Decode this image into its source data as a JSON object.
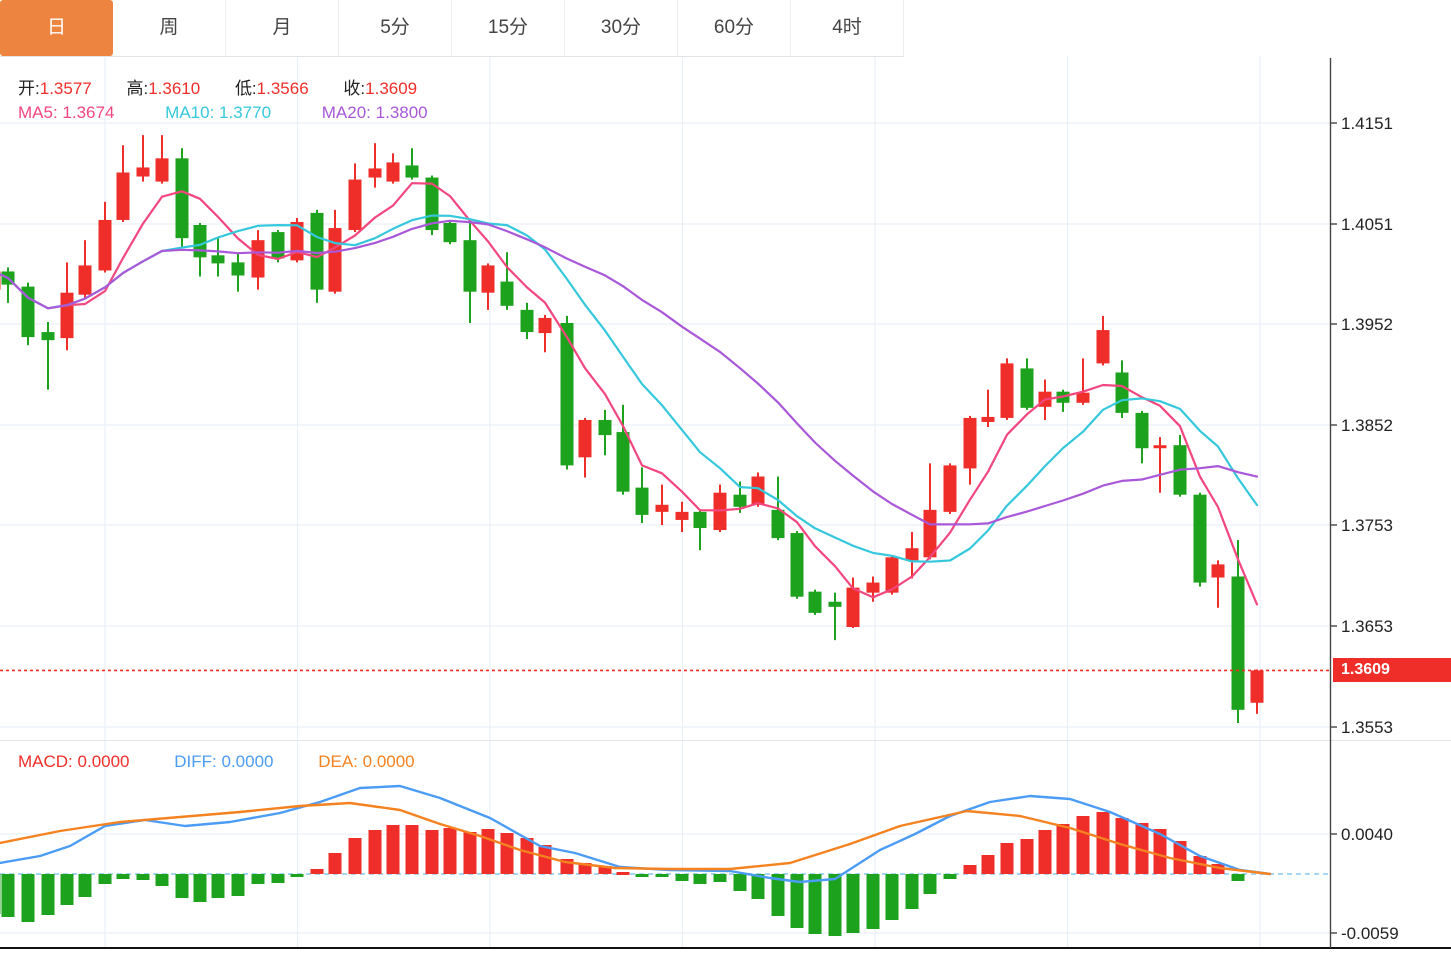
{
  "tabs": {
    "items": [
      {
        "label": "日",
        "active": true
      },
      {
        "label": "周",
        "active": false
      },
      {
        "label": "月",
        "active": false
      },
      {
        "label": "5分",
        "active": false
      },
      {
        "label": "15分",
        "active": false
      },
      {
        "label": "30分",
        "active": false
      },
      {
        "label": "60分",
        "active": false
      },
      {
        "label": "4时",
        "active": false
      }
    ]
  },
  "legend": {
    "ohlc": [
      {
        "label": "开:",
        "value": "1.3577"
      },
      {
        "label": "高:",
        "value": "1.3610"
      },
      {
        "label": "低:",
        "value": "1.3566"
      },
      {
        "label": "收:",
        "value": "1.3609"
      }
    ],
    "ma": [
      {
        "label": "MA5:",
        "value": "1.3674"
      },
      {
        "label": "MA10:",
        "value": "1.3770"
      },
      {
        "label": "MA20:",
        "value": "1.3800"
      }
    ]
  },
  "macd_legend": [
    {
      "label": "MACD:",
      "value": "0.0000"
    },
    {
      "label": "DIFF:",
      "value": "0.0000"
    },
    {
      "label": "DEA:",
      "value": "0.0000"
    }
  ],
  "colors": {
    "up": "#ef2e2a",
    "down": "#1ca21c",
    "accent": "#ed8540",
    "ma5": "#f2477e",
    "ma10": "#35c8dc",
    "ma20": "#a858d8",
    "diff": "#4b9cf5",
    "dea": "#f58220",
    "grid": "#e6eef6",
    "zero_line": "#a6d6f2",
    "price_line": "#f12c20"
  },
  "chart_data": {
    "type": "candlestick+macd",
    "main": {
      "y_axis_labels": [
        1.4151,
        1.4051,
        1.3952,
        1.3852,
        1.3753,
        1.3653,
        1.3553
      ],
      "current_price": 1.3609,
      "current_price_label": "1.3609",
      "ma_periods": [
        5,
        10,
        20
      ],
      "candles": [
        [
          -6,
          1.3986,
          1.4008,
          1.3981,
          1.4004
        ],
        [
          8,
          1.4004,
          1.4008,
          1.3973,
          1.3991
        ],
        [
          28,
          1.3989,
          1.3993,
          1.3931,
          1.3939
        ],
        [
          48,
          1.3944,
          1.3954,
          1.3887,
          1.3936
        ],
        [
          67,
          1.3938,
          1.4013,
          1.3926,
          1.3983
        ],
        [
          85,
          1.3981,
          1.4035,
          1.3977,
          1.401
        ],
        [
          105,
          1.4005,
          1.4073,
          1.4003,
          1.4055
        ],
        [
          123,
          1.4055,
          1.4129,
          1.4053,
          1.4102
        ],
        [
          143,
          1.4098,
          1.4139,
          1.4093,
          1.4107
        ],
        [
          162,
          1.4093,
          1.4139,
          1.4091,
          1.4116
        ],
        [
          182,
          1.4116,
          1.4126,
          1.4028,
          1.4037
        ],
        [
          200,
          1.405,
          1.4052,
          1.3999,
          1.4018
        ],
        [
          218,
          1.402,
          1.4038,
          1.3999,
          1.4012
        ],
        [
          238,
          1.4013,
          1.4023,
          1.3984,
          1.4
        ],
        [
          258,
          1.3998,
          1.4045,
          1.3986,
          1.4035
        ],
        [
          278,
          1.4043,
          1.4045,
          1.4013,
          1.4017
        ],
        [
          297,
          1.4015,
          1.4057,
          1.4013,
          1.4053
        ],
        [
          317,
          1.4062,
          1.4065,
          1.3973,
          1.3986
        ],
        [
          335,
          1.3984,
          1.4065,
          1.3982,
          1.4047
        ],
        [
          355,
          1.4045,
          1.4111,
          1.4043,
          1.4095
        ],
        [
          375,
          1.4097,
          1.4131,
          1.4087,
          1.4106
        ],
        [
          393,
          1.4093,
          1.4121,
          1.4091,
          1.4112
        ],
        [
          412,
          1.4109,
          1.4126,
          1.4095,
          1.4097
        ],
        [
          432,
          1.4097,
          1.4099,
          1.404,
          1.4045
        ],
        [
          450,
          1.4052,
          1.4054,
          1.4031,
          1.4033
        ],
        [
          470,
          1.4035,
          1.4052,
          1.3953,
          1.3984
        ],
        [
          488,
          1.3983,
          1.4012,
          1.3966,
          1.401
        ],
        [
          507,
          1.3994,
          1.4023,
          1.3966,
          1.397
        ],
        [
          527,
          1.3966,
          1.3973,
          1.3937,
          1.3944
        ],
        [
          545,
          1.3943,
          1.3961,
          1.3924,
          1.3958
        ],
        [
          567,
          1.3953,
          1.396,
          1.3808,
          1.3812
        ],
        [
          585,
          1.382,
          1.3859,
          1.38,
          1.3857
        ],
        [
          605,
          1.3857,
          1.3867,
          1.3822,
          1.3842
        ],
        [
          623,
          1.3845,
          1.3872,
          1.3783,
          1.3786
        ],
        [
          642,
          1.379,
          1.381,
          1.3755,
          1.3763
        ],
        [
          662,
          1.3766,
          1.3793,
          1.3753,
          1.3773
        ],
        [
          682,
          1.3758,
          1.3776,
          1.3746,
          1.3766
        ],
        [
          700,
          1.3766,
          1.3768,
          1.3728,
          1.375
        ],
        [
          720,
          1.3748,
          1.3793,
          1.3746,
          1.3785
        ],
        [
          740,
          1.3783,
          1.3796,
          1.3765,
          1.3771
        ],
        [
          758,
          1.3773,
          1.3805,
          1.3771,
          1.3801
        ],
        [
          778,
          1.3768,
          1.3801,
          1.3738,
          1.374
        ],
        [
          797,
          1.3745,
          1.3747,
          1.368,
          1.3682
        ],
        [
          815,
          1.3687,
          1.3689,
          1.3664,
          1.3666
        ],
        [
          835,
          1.3677,
          1.3686,
          1.3639,
          1.3672
        ],
        [
          853,
          1.3652,
          1.3701,
          1.3651,
          1.3691
        ],
        [
          873,
          1.3686,
          1.3702,
          1.3677,
          1.3696
        ],
        [
          892,
          1.3686,
          1.3723,
          1.3684,
          1.3721
        ],
        [
          912,
          1.3718,
          1.3746,
          1.37,
          1.373
        ],
        [
          930,
          1.3721,
          1.3814,
          1.3719,
          1.3768
        ],
        [
          950,
          1.3766,
          1.3814,
          1.3764,
          1.3812
        ],
        [
          970,
          1.3809,
          1.3861,
          1.3793,
          1.3859
        ],
        [
          988,
          1.3855,
          1.3887,
          1.385,
          1.386
        ],
        [
          1007,
          1.3859,
          1.3918,
          1.3857,
          1.3913
        ],
        [
          1027,
          1.3908,
          1.3918,
          1.3867,
          1.3869
        ],
        [
          1045,
          1.387,
          1.3897,
          1.3857,
          1.3885
        ],
        [
          1063,
          1.3885,
          1.3887,
          1.3865,
          1.3874
        ],
        [
          1083,
          1.3874,
          1.3918,
          1.3872,
          1.3884
        ],
        [
          1103,
          1.3913,
          1.396,
          1.3911,
          1.3946
        ],
        [
          1122,
          1.3904,
          1.3916,
          1.3859,
          1.3864
        ],
        [
          1142,
          1.3864,
          1.3866,
          1.3814,
          1.3829
        ],
        [
          1160,
          1.3829,
          1.384,
          1.3785,
          1.3832
        ],
        [
          1180,
          1.3832,
          1.3842,
          1.3781,
          1.3783
        ],
        [
          1200,
          1.3783,
          1.3785,
          1.3692,
          1.3696
        ],
        [
          1218,
          1.3701,
          1.3718,
          1.3671,
          1.3714
        ],
        [
          1238,
          1.3702,
          1.3738,
          1.3557,
          1.357
        ],
        [
          1257,
          1.3577,
          1.361,
          1.3566,
          1.3609
        ]
      ]
    },
    "macd": {
      "y_axis_labels": [
        0.004,
        -0.0059
      ],
      "bars": [
        [
          -6,
          -0.004
        ],
        [
          8,
          -0.0043
        ],
        [
          28,
          -0.0048
        ],
        [
          48,
          -0.0041
        ],
        [
          67,
          -0.0031
        ],
        [
          85,
          -0.0023
        ],
        [
          105,
          -0.001
        ],
        [
          123,
          -0.0005
        ],
        [
          143,
          -0.0006
        ],
        [
          162,
          -0.0012
        ],
        [
          182,
          -0.0024
        ],
        [
          200,
          -0.0028
        ],
        [
          218,
          -0.0024
        ],
        [
          238,
          -0.0022
        ],
        [
          258,
          -0.001
        ],
        [
          278,
          -0.0009
        ],
        [
          297,
          -0.0002
        ],
        [
          317,
          0.0005
        ],
        [
          335,
          0.0021
        ],
        [
          355,
          0.0036
        ],
        [
          375,
          0.0044
        ],
        [
          393,
          0.0049
        ],
        [
          412,
          0.0049
        ],
        [
          432,
          0.0044
        ],
        [
          450,
          0.0046
        ],
        [
          470,
          0.0042
        ],
        [
          488,
          0.0045
        ],
        [
          507,
          0.0041
        ],
        [
          527,
          0.0036
        ],
        [
          545,
          0.0029
        ],
        [
          567,
          0.0015
        ],
        [
          585,
          0.0011
        ],
        [
          605,
          0.0008
        ],
        [
          623,
          0.0002
        ],
        [
          642,
          -0.0002
        ],
        [
          662,
          -0.0003
        ],
        [
          682,
          -0.0007
        ],
        [
          700,
          -0.001
        ],
        [
          720,
          -0.0008
        ],
        [
          740,
          -0.0017
        ],
        [
          758,
          -0.0025
        ],
        [
          778,
          -0.0042
        ],
        [
          797,
          -0.0054
        ],
        [
          815,
          -0.006
        ],
        [
          835,
          -0.0062
        ],
        [
          853,
          -0.0059
        ],
        [
          873,
          -0.0055
        ],
        [
          892,
          -0.0046
        ],
        [
          912,
          -0.0035
        ],
        [
          930,
          -0.002
        ],
        [
          950,
          -0.0005
        ],
        [
          970,
          0.0009
        ],
        [
          988,
          0.0019
        ],
        [
          1007,
          0.0031
        ],
        [
          1027,
          0.0035
        ],
        [
          1045,
          0.0044
        ],
        [
          1063,
          0.005
        ],
        [
          1083,
          0.0058
        ],
        [
          1103,
          0.0062
        ],
        [
          1122,
          0.0056
        ],
        [
          1142,
          0.0051
        ],
        [
          1160,
          0.0045
        ],
        [
          1180,
          0.0033
        ],
        [
          1200,
          0.0018
        ],
        [
          1218,
          0.001
        ],
        [
          1238,
          -0.0007
        ],
        [
          1257,
          0.0
        ]
      ],
      "diff_line": [
        [
          0,
          0.0011
        ],
        [
          40,
          0.0018
        ],
        [
          70,
          0.0028
        ],
        [
          105,
          0.0048
        ],
        [
          145,
          0.0054
        ],
        [
          185,
          0.0048
        ],
        [
          230,
          0.0052
        ],
        [
          280,
          0.0061
        ],
        [
          320,
          0.0072
        ],
        [
          360,
          0.0086
        ],
        [
          400,
          0.0088
        ],
        [
          440,
          0.0076
        ],
        [
          490,
          0.0056
        ],
        [
          540,
          0.0028
        ],
        [
          575,
          0.0021
        ],
        [
          620,
          0.0007
        ],
        [
          670,
          0.0004
        ],
        [
          730,
          0.0003
        ],
        [
          770,
          -0.0004
        ],
        [
          800,
          -0.0008
        ],
        [
          835,
          -0.0005
        ],
        [
          880,
          0.0024
        ],
        [
          915,
          0.004
        ],
        [
          950,
          0.0058
        ],
        [
          990,
          0.0072
        ],
        [
          1030,
          0.0078
        ],
        [
          1070,
          0.0075
        ],
        [
          1110,
          0.0062
        ],
        [
          1160,
          0.004
        ],
        [
          1200,
          0.0018
        ],
        [
          1240,
          0.0004
        ],
        [
          1270,
          0.0
        ]
      ],
      "dea_line": [
        [
          0,
          0.0031
        ],
        [
          60,
          0.0043
        ],
        [
          120,
          0.0052
        ],
        [
          180,
          0.0057
        ],
        [
          240,
          0.0062
        ],
        [
          300,
          0.0068
        ],
        [
          350,
          0.0071
        ],
        [
          400,
          0.0064
        ],
        [
          440,
          0.005
        ],
        [
          480,
          0.0038
        ],
        [
          520,
          0.0024
        ],
        [
          565,
          0.0012
        ],
        [
          615,
          0.0006
        ],
        [
          670,
          0.0005
        ],
        [
          730,
          0.0005
        ],
        [
          790,
          0.0011
        ],
        [
          850,
          0.003
        ],
        [
          900,
          0.0048
        ],
        [
          967,
          0.0063
        ],
        [
          1020,
          0.0058
        ],
        [
          1070,
          0.0046
        ],
        [
          1120,
          0.003
        ],
        [
          1170,
          0.0016
        ],
        [
          1220,
          0.0006
        ],
        [
          1270,
          0.0
        ]
      ]
    }
  }
}
